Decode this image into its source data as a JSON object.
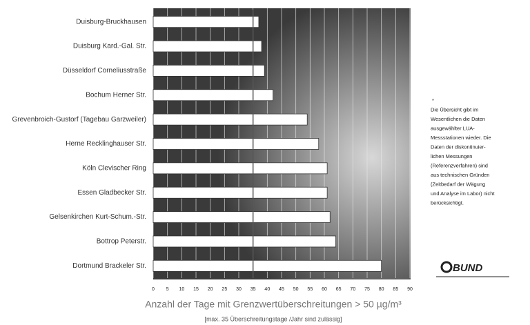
{
  "chart_data": {
    "type": "hbar",
    "title": "Anzahl der Tage mit Grenzwertüberschreitungen > 50 µg/m³",
    "subtitle": "[max. 35 Überschreitungstage /Jahr sind zulässig]",
    "categories": [
      "Duisburg-Bruckhausen",
      "Duisburg Kard.-Gal. Str.",
      "Düsseldorf Corneliusstraße",
      "Bochum Herner Str.",
      "Grevenbroich-Gustorf (Tagebau Garzweiler)",
      "Herne Recklinghauser Str.",
      "Köln Clevischer Ring",
      "Essen Gladbecker Str.",
      "Gelsenkirchen Kurt-Schum.-Str.",
      "Bottrop Peterstr.",
      "Dortmund Brackeler Str."
    ],
    "values": [
      37,
      38,
      39,
      42,
      54,
      58,
      61,
      61,
      62,
      64,
      80
    ],
    "color": "#ffffff",
    "xlim": [
      0,
      90
    ],
    "xticks": [
      0,
      5,
      10,
      15,
      20,
      25,
      30,
      35,
      40,
      45,
      50,
      55,
      60,
      65,
      70,
      75,
      80,
      85,
      90
    ],
    "grid": true,
    "reference_line": 35,
    "note_lines": [
      "*",
      "Die Übersicht gibt im",
      "Wesentlichen die Daten",
      "ausgewählter LUA-",
      "Messstationen wieder. Die",
      "Daten der diskontinuier-",
      "lichen Messungen",
      "(Referenzverfahren) sind",
      "aus technischen Gründen",
      "(Zeitbedarf der Wägung",
      "und Analyse im Labor) nicht",
      "berücksichtigt."
    ],
    "logo": "BUND"
  }
}
